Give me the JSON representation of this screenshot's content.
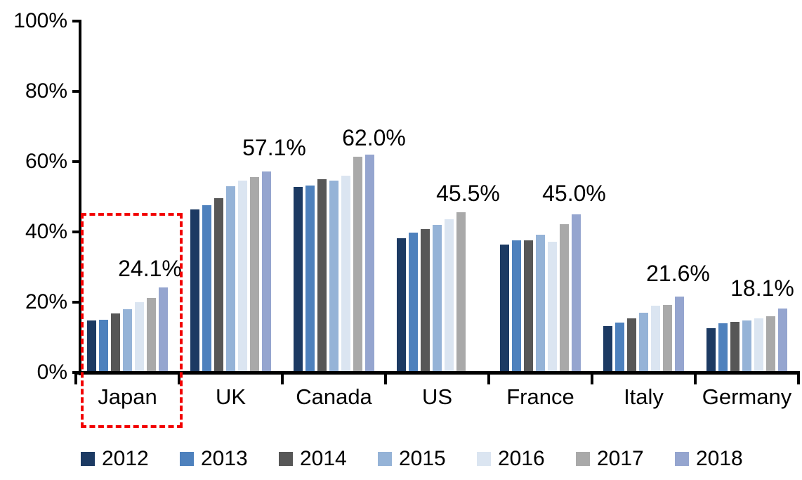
{
  "chart_data": {
    "type": "bar",
    "title": "",
    "xlabel": "",
    "ylabel": "",
    "ylim": [
      0,
      100
    ],
    "yticks": [
      "0%",
      "20%",
      "40%",
      "60%",
      "80%",
      "100%"
    ],
    "grid": false,
    "legend_position": "bottom",
    "categories": [
      "Japan",
      "UK",
      "Canada",
      "US",
      "France",
      "Italy",
      "Germany"
    ],
    "series": [
      {
        "name": "2012",
        "color": "#1C3A63",
        "values": [
          14.8,
          46.4,
          52.7,
          38.2,
          36.4,
          13.2,
          12.5
        ]
      },
      {
        "name": "2013",
        "color": "#4E81BD",
        "values": [
          15.0,
          47.6,
          53.2,
          39.8,
          37.6,
          14.2,
          14.0
        ]
      },
      {
        "name": "2014",
        "color": "#575757",
        "values": [
          16.7,
          49.6,
          54.9,
          40.8,
          37.6,
          15.3,
          14.4
        ]
      },
      {
        "name": "2015",
        "color": "#95B3D7",
        "values": [
          18.0,
          53.0,
          54.5,
          41.9,
          39.2,
          16.9,
          14.7
        ]
      },
      {
        "name": "2016",
        "color": "#DBE5F1",
        "values": [
          20.0,
          54.6,
          55.9,
          43.5,
          37.2,
          18.9,
          15.3
        ]
      },
      {
        "name": "2017",
        "color": "#A9A9A9",
        "values": [
          21.2,
          55.6,
          61.3,
          45.5,
          42.1,
          19.1,
          15.9
        ]
      },
      {
        "name": "2018",
        "color": "#95A5CF",
        "values": [
          24.1,
          57.1,
          62.0,
          null,
          45.0,
          21.6,
          18.1
        ]
      }
    ],
    "data_labels": [
      {
        "category": "Japan",
        "series": "2018",
        "text": "24.1%"
      },
      {
        "category": "UK",
        "series": "2018",
        "text": "57.1%"
      },
      {
        "category": "Canada",
        "series": "2018",
        "text": "62.0%"
      },
      {
        "category": "US",
        "series": "2017",
        "text": "45.5%"
      },
      {
        "category": "France",
        "series": "2018",
        "text": "45.0%"
      },
      {
        "category": "Italy",
        "series": "2018",
        "text": "21.6%"
      },
      {
        "category": "Germany",
        "series": "2018",
        "text": "18.1%"
      }
    ],
    "annotations": [
      {
        "type": "highlight-rectangle",
        "target": "Japan",
        "style": "dashed",
        "color": "#F20000"
      }
    ]
  }
}
